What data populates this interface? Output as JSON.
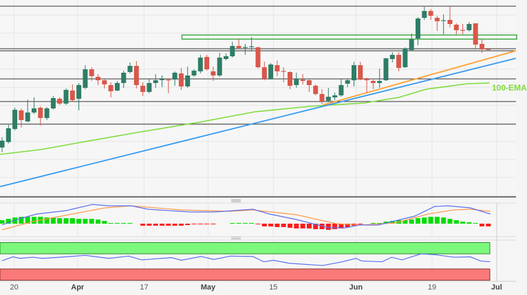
{
  "chart_data": {
    "type": "candlestick",
    "title": "",
    "x_ticks": [
      {
        "label": "20",
        "bar": 1.9,
        "month": false
      },
      {
        "label": "Apr",
        "bar": 11.8,
        "month": true
      },
      {
        "label": "17",
        "bar": 22.2,
        "month": false
      },
      {
        "label": "May",
        "bar": 32.2,
        "month": true
      },
      {
        "label": "15",
        "bar": 42.4,
        "month": false
      },
      {
        "label": "Jun",
        "bar": 55.3,
        "month": true
      },
      {
        "label": "19",
        "bar": 67.2,
        "month": false
      },
      {
        "label": "Jul",
        "bar": 77.3,
        "month": true
      }
    ],
    "price_axis_labels": "not shown",
    "ohlc_columns": [
      "open",
      "high",
      "low",
      "close"
    ],
    "candles": [
      [
        85,
        100,
        78,
        95
      ],
      [
        93,
        118,
        91,
        113
      ],
      [
        112,
        143,
        110,
        140
      ],
      [
        139,
        142,
        114,
        125
      ],
      [
        123,
        155,
        122,
        136
      ],
      [
        136,
        158,
        134,
        142
      ],
      [
        143,
        145,
        117,
        128
      ],
      [
        128,
        144,
        125,
        142
      ],
      [
        142,
        160,
        140,
        157
      ],
      [
        156,
        158,
        147,
        149
      ],
      [
        149,
        171,
        147,
        169
      ],
      [
        168,
        177,
        152,
        154
      ],
      [
        156,
        179,
        139,
        176
      ],
      [
        172,
        205,
        170,
        199
      ],
      [
        199,
        202,
        182,
        189
      ],
      [
        188,
        192,
        176,
        183
      ],
      [
        183,
        185,
        171,
        177
      ],
      [
        176,
        180,
        158,
        167
      ],
      [
        168,
        182,
        167,
        179
      ],
      [
        179,
        197,
        172,
        194
      ],
      [
        195,
        209,
        193,
        204
      ],
      [
        204,
        211,
        171,
        176
      ],
      [
        175,
        180,
        160,
        166
      ],
      [
        166,
        185,
        164,
        179
      ],
      [
        179,
        192,
        172,
        183
      ],
      [
        184,
        190,
        173,
        184.5
      ],
      [
        184,
        185,
        164,
        183
      ],
      [
        184,
        196,
        175,
        194
      ],
      [
        193,
        201,
        169,
        174
      ],
      [
        174,
        203,
        172,
        190
      ],
      [
        190,
        199,
        188,
        197
      ],
      [
        196,
        220,
        193,
        216
      ],
      [
        217,
        220,
        197,
        199
      ],
      [
        196,
        203,
        182,
        190
      ],
      [
        190,
        223,
        188,
        216
      ],
      [
        214,
        222,
        212,
        218
      ],
      [
        218,
        239,
        216,
        233
      ],
      [
        233,
        243,
        229,
        230
      ],
      [
        231,
        236,
        220,
        231.5
      ],
      [
        232,
        246,
        225,
        232.5
      ],
      [
        231,
        232,
        200,
        202
      ],
      [
        202,
        210,
        183,
        185
      ],
      [
        185,
        208,
        184,
        206
      ],
      [
        205,
        212,
        189,
        196
      ],
      [
        196.5,
        202,
        180,
        196
      ],
      [
        195,
        196,
        170,
        175
      ],
      [
        176,
        194,
        172,
        185
      ],
      [
        184,
        192,
        177,
        182
      ],
      [
        183,
        185,
        166,
        176
      ],
      [
        175,
        177,
        161,
        163
      ],
      [
        163,
        170,
        148,
        152
      ],
      [
        153,
        172,
        151,
        159
      ],
      [
        158,
        165,
        154,
        161
      ],
      [
        161,
        185,
        159,
        176
      ],
      [
        178,
        185,
        173,
        183
      ],
      [
        183,
        210,
        174,
        205
      ],
      [
        205,
        210,
        183,
        184
      ],
      [
        185,
        187,
        165,
        183
      ],
      [
        182,
        184,
        170,
        179
      ],
      [
        179,
        200,
        172,
        182
      ],
      [
        183,
        216,
        182,
        215
      ],
      [
        214,
        224,
        209,
        220
      ],
      [
        220,
        224,
        196,
        201
      ],
      [
        202,
        231,
        201,
        229
      ],
      [
        227,
        251,
        226,
        243
      ],
      [
        244,
        275,
        234,
        273
      ],
      [
        274,
        290,
        271,
        284
      ],
      [
        284,
        287,
        271,
        277
      ],
      [
        274,
        277,
        255,
        269
      ],
      [
        270,
        279,
        250,
        270.5
      ],
      [
        271,
        291,
        260,
        265
      ],
      [
        264,
        266,
        250,
        256
      ],
      [
        256.5,
        265,
        250,
        256
      ],
      [
        256,
        268,
        254,
        265
      ],
      [
        266,
        266,
        228,
        235
      ],
      [
        236,
        243,
        223,
        228
      ],
      [
        228.5,
        229,
        227,
        228
      ]
    ],
    "horizontal_levels": [
      291,
      229,
      226,
      185,
      152,
      119
    ],
    "resistance_zone": {
      "from_bar": 28,
      "top": 249,
      "bottom": 243,
      "color": "#4caf50"
    },
    "trend_lines": [
      {
        "color": "#3399ee",
        "from": [
          -0.3,
          28
        ],
        "to": [
          80.3,
          215
        ]
      },
      {
        "color": "#ff9f2e",
        "from": [
          50.2,
          147
        ],
        "to": [
          80.3,
          226
        ]
      }
    ],
    "ema": {
      "name": "100-EMA",
      "color": "#7ddc3a",
      "points": [
        [
          -0.3,
          75
        ],
        [
          6.1,
          82
        ],
        [
          12,
          92
        ],
        [
          21.2,
          107
        ],
        [
          30.9,
          122
        ],
        [
          39.5,
          137
        ],
        [
          48.1,
          145
        ],
        [
          56.7,
          150
        ],
        [
          62,
          158
        ],
        [
          66.3,
          170
        ],
        [
          72.8,
          178
        ],
        [
          76.2,
          179
        ]
      ]
    },
    "macd": {
      "line_color": "#5a6ff0",
      "signal_color": "#ff9a4a",
      "histogram_up_color": "#00dd00",
      "histogram_down_color": "#ff1a1a",
      "line": [
        [
          0,
          -2
        ],
        [
          2.3,
          6
        ],
        [
          5.4,
          14
        ],
        [
          10,
          19
        ],
        [
          14.1,
          28
        ],
        [
          16.7,
          26
        ],
        [
          20.2,
          26
        ],
        [
          22.8,
          21
        ],
        [
          29.5,
          17
        ],
        [
          33.1,
          17
        ],
        [
          39.2,
          21
        ],
        [
          41.8,
          14
        ],
        [
          46,
          6
        ],
        [
          51.1,
          -6
        ],
        [
          53.7,
          -6
        ],
        [
          55.8,
          -2
        ],
        [
          58.8,
          -2
        ],
        [
          61.4,
          4
        ],
        [
          64.5,
          11
        ],
        [
          67.6,
          25
        ],
        [
          69.7,
          26
        ],
        [
          73.2,
          23
        ],
        [
          76.3,
          14
        ]
      ],
      "signal": [
        [
          0,
          -9
        ],
        [
          4.8,
          3
        ],
        [
          11.5,
          15
        ],
        [
          16.1,
          23
        ],
        [
          20.2,
          26
        ],
        [
          28,
          20
        ],
        [
          35.7,
          18
        ],
        [
          39.2,
          20
        ],
        [
          46,
          13
        ],
        [
          52.2,
          0
        ],
        [
          56.2,
          -2
        ],
        [
          61.4,
          1
        ],
        [
          66.6,
          14
        ],
        [
          70.6,
          20
        ],
        [
          73.2,
          21
        ],
        [
          76.3,
          18
        ]
      ],
      "histogram": [
        5,
        7,
        9,
        10,
        10,
        10,
        10,
        9,
        9,
        8,
        8,
        8,
        7,
        7,
        7,
        6,
        4,
        1,
        1,
        1,
        1,
        0,
        -3,
        -3,
        -3,
        -3,
        -3,
        -3,
        -3,
        -2,
        -1,
        -1,
        -1,
        -1,
        0,
        0,
        1,
        1,
        1,
        1,
        -1,
        -4,
        -4,
        -5,
        -5,
        -6,
        -7,
        -7,
        -7,
        -8,
        -8,
        -9,
        -8,
        -7,
        -5,
        -3,
        -1,
        0,
        1,
        1,
        3,
        4,
        5,
        5,
        6,
        8,
        9,
        10,
        10,
        9,
        7,
        5,
        3,
        2,
        1,
        -4,
        -4
      ]
    },
    "rsi": {
      "color": "#5a6ff0",
      "range": [
        0,
        100
      ],
      "overbought_zone": [
        70,
        100
      ],
      "oversold_zone": [
        0,
        30
      ],
      "overbought_color": "#7cf87c",
      "oversold_color": "#fa7a7a",
      "points": [
        [
          0,
          51.8
        ],
        [
          1.7,
          62
        ],
        [
          2.8,
          58
        ],
        [
          4.8,
          61
        ],
        [
          6.3,
          58
        ],
        [
          10,
          62
        ],
        [
          13,
          66
        ],
        [
          16.7,
          58
        ],
        [
          19.8,
          64
        ],
        [
          21.8,
          54
        ],
        [
          26.5,
          60
        ],
        [
          28,
          53
        ],
        [
          31.1,
          63
        ],
        [
          33.1,
          55
        ],
        [
          35.7,
          64
        ],
        [
          39.2,
          63
        ],
        [
          40.9,
          49
        ],
        [
          42.4,
          53
        ],
        [
          44.9,
          45
        ],
        [
          50.1,
          39
        ],
        [
          53.2,
          49
        ],
        [
          55.3,
          58
        ],
        [
          56.2,
          51
        ],
        [
          59.4,
          49
        ],
        [
          60.9,
          61
        ],
        [
          62.5,
          54
        ],
        [
          65.5,
          70
        ],
        [
          67.6,
          68
        ],
        [
          70.6,
          61
        ],
        [
          73.2,
          62
        ],
        [
          74.8,
          51
        ],
        [
          76.3,
          49
        ]
      ]
    },
    "colors": {
      "up": "#2f7d67",
      "down": "#d9574a",
      "background": "#f5f5f5"
    },
    "grid": true
  }
}
